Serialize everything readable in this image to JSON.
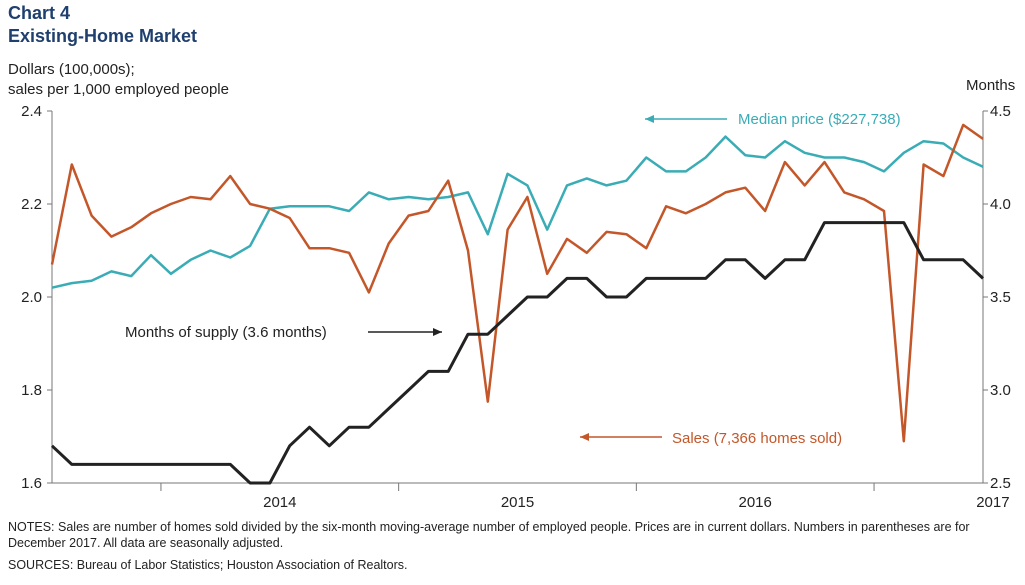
{
  "header": {
    "chart_number": "Chart 4",
    "title": "Existing-Home  Market"
  },
  "axes": {
    "left_label_line1": "Dollars  (100,000s);",
    "left_label_line2": "sales  per 1,000  employed  people",
    "right_label": "Months"
  },
  "footer": {
    "notes": "NOTES:  Sales are number of homes sold divided by the six-month moving-average number of employed people. Prices are in current dollars. Numbers  in parentheses are for December 2017. All data are seasonally adjusted.",
    "sources": "SOURCES:  Bureau of Labor Statistics;  Houston Association  of Realtors."
  },
  "chart_data": {
    "type": "line",
    "x_start": "2013-07",
    "x_end": "2017-12",
    "x_ticks": [
      "2014",
      "2015",
      "2016",
      "2017"
    ],
    "y_left": {
      "min": 1.6,
      "max": 2.4,
      "ticks": [
        "1.6",
        "1.8",
        "2.0",
        "2.2",
        "2.4"
      ]
    },
    "y_right": {
      "min": 2.5,
      "max": 4.5,
      "ticks": [
        "2.5",
        "3.0",
        "3.5",
        "4.0",
        "4.5"
      ]
    },
    "grid": false,
    "series": [
      {
        "name": "Median  price ($227,738)",
        "axis": "left",
        "color": "#3aacb5",
        "values": [
          2.02,
          2.03,
          2.035,
          2.055,
          2.045,
          2.09,
          2.05,
          2.08,
          2.1,
          2.085,
          2.11,
          2.19,
          2.195,
          2.195,
          2.195,
          2.185,
          2.225,
          2.21,
          2.215,
          2.21,
          2.215,
          2.225,
          2.135,
          2.265,
          2.24,
          2.145,
          2.24,
          2.255,
          2.24,
          2.25,
          2.3,
          2.27,
          2.27,
          2.3,
          2.345,
          2.305,
          2.3,
          2.335,
          2.31,
          2.3,
          2.3,
          2.29,
          2.27,
          2.31,
          2.335,
          2.33,
          2.3,
          2.28
        ]
      },
      {
        "name": "Sales  (7,366  homes  sold)",
        "axis": "left",
        "color": "#c4572a",
        "values": [
          2.07,
          2.285,
          2.175,
          2.13,
          2.15,
          2.18,
          2.2,
          2.215,
          2.21,
          2.26,
          2.2,
          2.19,
          2.17,
          2.105,
          2.105,
          2.095,
          2.01,
          2.115,
          2.175,
          2.185,
          2.25,
          2.1,
          1.775,
          2.145,
          2.215,
          2.05,
          2.125,
          2.095,
          2.14,
          2.135,
          2.105,
          2.195,
          2.18,
          2.2,
          2.225,
          2.235,
          2.185,
          2.29,
          2.24,
          2.29,
          2.225,
          2.21,
          2.185,
          1.69,
          2.285,
          2.26,
          2.37,
          2.34
        ]
      },
      {
        "name": "Months  of supply  (3.6  months)",
        "axis": "right",
        "color": "#222222",
        "values": [
          2.7,
          2.6,
          2.6,
          2.6,
          2.6,
          2.6,
          2.6,
          2.6,
          2.6,
          2.6,
          2.5,
          2.5,
          2.7,
          2.8,
          2.7,
          2.8,
          2.8,
          2.9,
          3.0,
          3.1,
          3.1,
          3.3,
          3.3,
          3.4,
          3.5,
          3.5,
          3.6,
          3.6,
          3.5,
          3.5,
          3.6,
          3.6,
          3.6,
          3.6,
          3.7,
          3.7,
          3.6,
          3.7,
          3.7,
          3.9,
          3.9,
          3.9,
          3.9,
          3.9,
          3.7,
          3.7,
          3.7,
          3.6
        ]
      }
    ]
  }
}
